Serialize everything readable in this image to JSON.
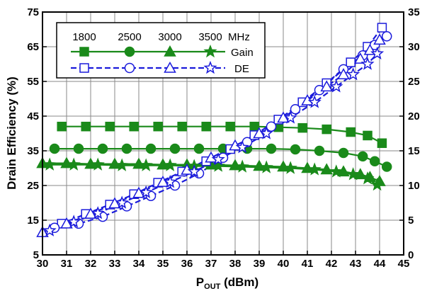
{
  "chart_data": {
    "type": "line",
    "xlabel": "P",
    "xlabel_sub": "OUT",
    "xlabel_unit": " (dBm)",
    "ylabel": "Drain Efficiency (%)",
    "ylabel_right": "",
    "xlim": [
      30,
      45
    ],
    "ylim": [
      5,
      75
    ],
    "ylim_right": [
      0,
      35
    ],
    "xticks": [
      "30",
      "31",
      "32",
      "33",
      "34",
      "35",
      "36",
      "37",
      "38",
      "39",
      "40",
      "41",
      "42",
      "43",
      "44",
      "45"
    ],
    "yticks": [
      "5",
      "15",
      "25",
      "35",
      "45",
      "55",
      "65",
      "75"
    ],
    "yticks_right": [
      "0",
      "5",
      "10",
      "15",
      "20",
      "25",
      "30",
      "35"
    ],
    "grid": true,
    "legend": {
      "position": "top-left",
      "frequencies": [
        "1800",
        "2500",
        "3000",
        "3500"
      ],
      "unit": "MHz",
      "row_labels": [
        "Gain",
        "DE"
      ]
    },
    "colors": {
      "gain": "#1a8a1a",
      "de": "#1a1adb"
    },
    "series": [
      {
        "frequency": "1800",
        "metric": "Gain",
        "axis": "right",
        "marker": "square",
        "x": [
          30.8,
          31.8,
          32.8,
          33.8,
          34.8,
          35.8,
          36.8,
          37.8,
          38.8,
          39.8,
          40.8,
          41.8,
          42.8,
          43.5,
          44.1
        ],
        "y": [
          18.5,
          18.5,
          18.5,
          18.5,
          18.5,
          18.5,
          18.5,
          18.5,
          18.5,
          18.4,
          18.3,
          18.1,
          17.7,
          17.2,
          16.1
        ]
      },
      {
        "frequency": "2500",
        "metric": "Gain",
        "axis": "right",
        "marker": "circle",
        "x": [
          30.5,
          31.5,
          32.5,
          33.5,
          34.5,
          35.5,
          36.5,
          37.5,
          38.5,
          39.5,
          40.5,
          41.5,
          42.5,
          43.3,
          43.8,
          44.3
        ],
        "y": [
          15.3,
          15.3,
          15.3,
          15.3,
          15.3,
          15.3,
          15.3,
          15.3,
          15.3,
          15.3,
          15.2,
          15.0,
          14.7,
          14.2,
          13.5,
          12.7
        ]
      },
      {
        "frequency": "3000",
        "metric": "Gain",
        "axis": "right",
        "marker": "triangle",
        "x": [
          30.0,
          31.0,
          32.0,
          33.0,
          34.0,
          35.0,
          36.0,
          37.0,
          38.0,
          39.0,
          40.0,
          41.0,
          41.8,
          42.5,
          43.2,
          43.6,
          44.0
        ],
        "y": [
          13.2,
          13.2,
          13.1,
          13.1,
          13.1,
          13.0,
          13.0,
          13.0,
          12.9,
          12.8,
          12.7,
          12.5,
          12.3,
          12.0,
          11.6,
          11.2,
          10.6
        ]
      },
      {
        "frequency": "3500",
        "metric": "Gain",
        "axis": "right",
        "marker": "star",
        "x": [
          30.3,
          31.3,
          32.3,
          33.3,
          34.3,
          35.3,
          36.3,
          37.3,
          38.3,
          39.3,
          40.3,
          41.3,
          42.2,
          42.9,
          43.5,
          43.9
        ],
        "y": [
          13.0,
          13.0,
          13.0,
          12.9,
          12.9,
          12.9,
          12.8,
          12.8,
          12.7,
          12.6,
          12.5,
          12.3,
          12.0,
          11.6,
          11.0,
          10.1
        ]
      },
      {
        "frequency": "1800",
        "metric": "DE",
        "axis": "left",
        "marker": "square",
        "x": [
          30.8,
          31.8,
          32.8,
          33.8,
          34.8,
          35.8,
          36.8,
          37.8,
          38.8,
          39.8,
          40.8,
          41.8,
          42.8,
          43.5,
          44.1
        ],
        "y": [
          14.0,
          16.8,
          19.5,
          22.5,
          25.8,
          29.0,
          32.0,
          35.5,
          39.5,
          44.0,
          49.0,
          54.5,
          60.5,
          65.0,
          70.5
        ]
      },
      {
        "frequency": "2500",
        "metric": "DE",
        "axis": "left",
        "marker": "circle",
        "x": [
          30.5,
          31.5,
          32.5,
          33.5,
          34.5,
          35.5,
          36.5,
          37.5,
          38.5,
          39.5,
          40.5,
          41.5,
          42.5,
          43.3,
          43.8,
          44.3
        ],
        "y": [
          12.8,
          14.0,
          16.0,
          19.0,
          22.0,
          25.0,
          28.5,
          33.0,
          37.5,
          42.0,
          47.0,
          52.5,
          58.5,
          62.5,
          65.5,
          68.0
        ]
      },
      {
        "frequency": "3000",
        "metric": "DE",
        "axis": "left",
        "marker": "triangle",
        "x": [
          30.0,
          31.0,
          32.0,
          33.0,
          34.0,
          35.0,
          36.0,
          37.0,
          38.0,
          39.0,
          40.0,
          41.0,
          41.8,
          42.5,
          43.2,
          43.6,
          44.0
        ],
        "y": [
          11.5,
          14.0,
          16.8,
          19.8,
          22.8,
          26.0,
          29.5,
          33.0,
          36.5,
          40.0,
          44.5,
          49.5,
          53.5,
          57.0,
          61.5,
          64.0,
          67.0
        ]
      },
      {
        "frequency": "3500",
        "metric": "DE",
        "axis": "left",
        "marker": "star",
        "x": [
          30.3,
          31.3,
          32.3,
          33.3,
          34.3,
          35.3,
          36.3,
          37.3,
          38.3,
          39.3,
          40.3,
          41.3,
          42.2,
          42.9,
          43.5,
          43.9
        ],
        "y": [
          12.0,
          14.5,
          17.0,
          20.0,
          23.0,
          26.0,
          29.0,
          32.5,
          36.0,
          40.0,
          44.5,
          49.0,
          53.5,
          57.0,
          60.0,
          63.0
        ]
      }
    ]
  }
}
